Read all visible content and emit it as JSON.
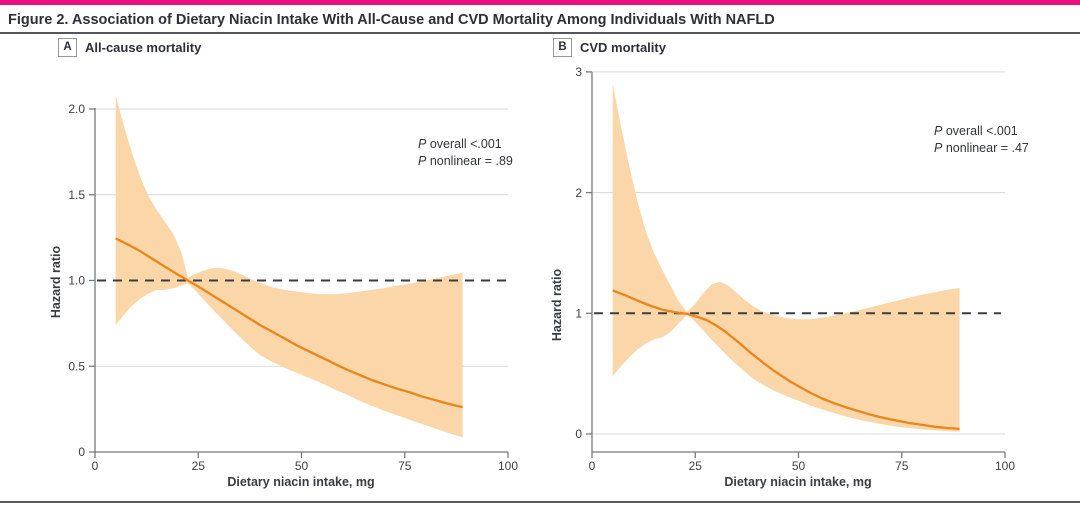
{
  "header": {
    "title": "Figure 2. Association of Dietary Niacin Intake With All-Cause and CVD Mortality Among Individuals With NAFLD",
    "accent_color": "#EB0F80"
  },
  "chart_data": [
    {
      "type": "line",
      "panel_label": "A",
      "title": "All-cause mortality",
      "xlabel": "Dietary niacin intake, mg",
      "ylabel": "Hazard ratio",
      "xlim": [
        0,
        100
      ],
      "xticks": [
        0,
        25,
        50,
        75,
        100
      ],
      "xtick_labels": [
        "0",
        "25",
        "50",
        "75",
        "100"
      ],
      "ylim": [
        0,
        2.0
      ],
      "ytick_values": [
        0,
        0.5,
        1.0,
        1.5,
        2.0
      ],
      "yticks": [
        "0",
        "0.5",
        "1.0",
        "1.5",
        "2.0"
      ],
      "ref_line": 1.0,
      "grid": true,
      "annotations": [
        "P overall <.001",
        "P nonlinear = .89"
      ],
      "colors": {
        "line": "#E8861C",
        "band": "#FAD6A8",
        "ref": "#3c3d41"
      },
      "series": [
        {
          "name": "hazard-ratio",
          "points": [
            [
              5,
              1.245
            ],
            [
              8,
              1.21
            ],
            [
              11,
              1.17
            ],
            [
              14,
              1.125
            ],
            [
              17,
              1.08
            ],
            [
              20,
              1.035
            ],
            [
              22.5,
              1.0
            ],
            [
              25,
              0.965
            ],
            [
              28,
              0.92
            ],
            [
              31,
              0.875
            ],
            [
              34,
              0.83
            ],
            [
              37,
              0.785
            ],
            [
              40,
              0.74
            ],
            [
              43,
              0.7
            ],
            [
              46,
              0.66
            ],
            [
              49,
              0.62
            ],
            [
              52,
              0.585
            ],
            [
              55,
              0.55
            ],
            [
              58,
              0.515
            ],
            [
              61,
              0.48
            ],
            [
              64,
              0.45
            ],
            [
              67,
              0.42
            ],
            [
              70,
              0.395
            ],
            [
              73,
              0.37
            ],
            [
              76,
              0.35
            ],
            [
              79,
              0.325
            ],
            [
              82,
              0.305
            ],
            [
              85,
              0.285
            ],
            [
              87,
              0.273
            ],
            [
              89,
              0.262
            ]
          ]
        },
        {
          "name": "ci-upper",
          "points": [
            [
              5,
              2.08
            ],
            [
              7,
              1.9
            ],
            [
              9,
              1.74
            ],
            [
              11,
              1.6
            ],
            [
              13,
              1.49
            ],
            [
              15,
              1.41
            ],
            [
              17,
              1.34
            ],
            [
              19,
              1.27
            ],
            [
              21,
              1.16
            ],
            [
              22.5,
              1.015
            ],
            [
              24,
              1.035
            ],
            [
              26,
              1.055
            ],
            [
              28,
              1.07
            ],
            [
              30,
              1.075
            ],
            [
              32,
              1.065
            ],
            [
              34,
              1.05
            ],
            [
              36,
              1.03
            ],
            [
              38,
              1.005
            ],
            [
              40,
              0.985
            ],
            [
              43,
              0.96
            ],
            [
              46,
              0.945
            ],
            [
              49,
              0.935
            ],
            [
              52,
              0.925
            ],
            [
              55,
              0.92
            ],
            [
              58,
              0.92
            ],
            [
              61,
              0.925
            ],
            [
              64,
              0.935
            ],
            [
              67,
              0.945
            ],
            [
              70,
              0.955
            ],
            [
              73,
              0.97
            ],
            [
              76,
              0.98
            ],
            [
              79,
              0.995
            ],
            [
              82,
              1.01
            ],
            [
              85,
              1.025
            ],
            [
              87,
              1.035
            ],
            [
              89,
              1.045
            ]
          ]
        },
        {
          "name": "ci-lower",
          "points": [
            [
              5,
              0.74
            ],
            [
              7,
              0.8
            ],
            [
              9,
              0.855
            ],
            [
              11,
              0.895
            ],
            [
              13,
              0.925
            ],
            [
              15,
              0.945
            ],
            [
              17,
              0.945
            ],
            [
              19,
              0.955
            ],
            [
              21,
              0.97
            ],
            [
              22.5,
              0.985
            ],
            [
              24,
              0.95
            ],
            [
              26,
              0.895
            ],
            [
              28,
              0.845
            ],
            [
              30,
              0.795
            ],
            [
              32,
              0.745
            ],
            [
              34,
              0.695
            ],
            [
              36,
              0.65
            ],
            [
              38,
              0.605
            ],
            [
              40,
              0.565
            ],
            [
              43,
              0.525
            ],
            [
              46,
              0.49
            ],
            [
              49,
              0.46
            ],
            [
              52,
              0.43
            ],
            [
              55,
              0.4
            ],
            [
              58,
              0.365
            ],
            [
              61,
              0.335
            ],
            [
              64,
              0.3
            ],
            [
              67,
              0.27
            ],
            [
              70,
              0.24
            ],
            [
              73,
              0.215
            ],
            [
              76,
              0.19
            ],
            [
              79,
              0.165
            ],
            [
              82,
              0.14
            ],
            [
              85,
              0.115
            ],
            [
              87,
              0.1
            ],
            [
              89,
              0.085
            ]
          ]
        }
      ]
    },
    {
      "type": "line",
      "panel_label": "B",
      "title": "CVD mortality",
      "xlabel": "Dietary niacin intake, mg",
      "ylabel": "Hazard ratio",
      "xlim": [
        0,
        100
      ],
      "xticks": [
        0,
        25,
        50,
        75,
        100
      ],
      "xtick_labels": [
        "0",
        "25",
        "50",
        "75",
        "100"
      ],
      "ylim": [
        0,
        3
      ],
      "ytick_values": [
        0,
        1,
        2,
        3
      ],
      "yticks": [
        "0",
        "1",
        "2",
        "3"
      ],
      "ref_line": 1.0,
      "grid": true,
      "annotations": [
        "P overall <.001",
        "P nonlinear = .47"
      ],
      "colors": {
        "line": "#E8861C",
        "band": "#FAD6A8",
        "ref": "#3c3d41"
      },
      "series": [
        {
          "name": "hazard-ratio",
          "points": [
            [
              5,
              1.19
            ],
            [
              8,
              1.15
            ],
            [
              11,
              1.105
            ],
            [
              14,
              1.065
            ],
            [
              17,
              1.03
            ],
            [
              20,
              1.01
            ],
            [
              23,
              0.995
            ],
            [
              26,
              0.965
            ],
            [
              28,
              0.94
            ],
            [
              30,
              0.9
            ],
            [
              32,
              0.855
            ],
            [
              34,
              0.8
            ],
            [
              36,
              0.745
            ],
            [
              38,
              0.685
            ],
            [
              40,
              0.63
            ],
            [
              42,
              0.575
            ],
            [
              44,
              0.525
            ],
            [
              46,
              0.48
            ],
            [
              48,
              0.435
            ],
            [
              50,
              0.395
            ],
            [
              53,
              0.34
            ],
            [
              56,
              0.29
            ],
            [
              59,
              0.25
            ],
            [
              62,
              0.215
            ],
            [
              65,
              0.185
            ],
            [
              68,
              0.155
            ],
            [
              71,
              0.13
            ],
            [
              74,
              0.11
            ],
            [
              77,
              0.09
            ],
            [
              80,
              0.075
            ],
            [
              83,
              0.06
            ],
            [
              86,
              0.05
            ],
            [
              89,
              0.042
            ]
          ]
        },
        {
          "name": "ci-upper",
          "points": [
            [
              5,
              2.9
            ],
            [
              7,
              2.55
            ],
            [
              9,
              2.22
            ],
            [
              11,
              1.93
            ],
            [
              13,
              1.68
            ],
            [
              15,
              1.5
            ],
            [
              17,
              1.36
            ],
            [
              19,
              1.23
            ],
            [
              21,
              1.1
            ],
            [
              23,
              1.01
            ],
            [
              25,
              1.08
            ],
            [
              27,
              1.17
            ],
            [
              29,
              1.24
            ],
            [
              31,
              1.26
            ],
            [
              33,
              1.23
            ],
            [
              35,
              1.17
            ],
            [
              37,
              1.11
            ],
            [
              39,
              1.06
            ],
            [
              41,
              1.02
            ],
            [
              44,
              0.985
            ],
            [
              47,
              0.96
            ],
            [
              50,
              0.95
            ],
            [
              53,
              0.95
            ],
            [
              56,
              0.965
            ],
            [
              59,
              0.985
            ],
            [
              62,
              1.005
            ],
            [
              65,
              1.03
            ],
            [
              68,
              1.055
            ],
            [
              71,
              1.08
            ],
            [
              74,
              1.105
            ],
            [
              77,
              1.13
            ],
            [
              80,
              1.155
            ],
            [
              83,
              1.175
            ],
            [
              86,
              1.195
            ],
            [
              89,
              1.21
            ]
          ]
        },
        {
          "name": "ci-lower",
          "points": [
            [
              5,
              0.48
            ],
            [
              7,
              0.56
            ],
            [
              9,
              0.635
            ],
            [
              11,
              0.7
            ],
            [
              13,
              0.75
            ],
            [
              15,
              0.785
            ],
            [
              17,
              0.8
            ],
            [
              19,
              0.845
            ],
            [
              21,
              0.92
            ],
            [
              23,
              0.985
            ],
            [
              25,
              0.93
            ],
            [
              27,
              0.855
            ],
            [
              29,
              0.78
            ],
            [
              31,
              0.71
            ],
            [
              33,
              0.64
            ],
            [
              35,
              0.575
            ],
            [
              37,
              0.515
            ],
            [
              39,
              0.46
            ],
            [
              41,
              0.415
            ],
            [
              44,
              0.36
            ],
            [
              47,
              0.315
            ],
            [
              50,
              0.275
            ],
            [
              53,
              0.235
            ],
            [
              56,
              0.2
            ],
            [
              59,
              0.17
            ],
            [
              62,
              0.14
            ],
            [
              65,
              0.115
            ],
            [
              68,
              0.095
            ],
            [
              71,
              0.075
            ],
            [
              74,
              0.06
            ],
            [
              77,
              0.048
            ],
            [
              80,
              0.038
            ],
            [
              83,
              0.03
            ],
            [
              86,
              0.024
            ],
            [
              89,
              0.02
            ]
          ]
        }
      ]
    }
  ]
}
